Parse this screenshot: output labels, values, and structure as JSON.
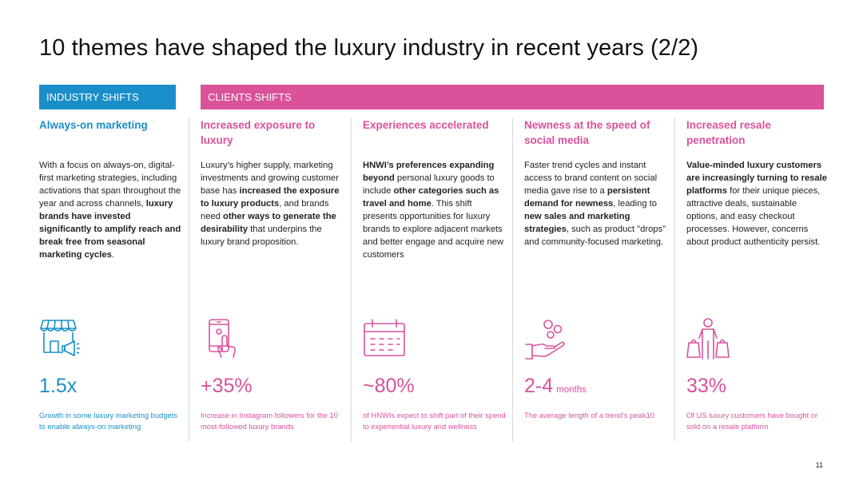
{
  "title": "10 themes have shaped the luxury industry in recent years (2/2)",
  "bands": {
    "industry": "INDUSTRY SHIFTS",
    "clients": "CLIENTS SHIFTS"
  },
  "columns": [
    {
      "title": "Always-on marketing",
      "body_html": "With a focus on always-on, digital-first marketing strategies, including activations that span throughout the year and across channels, <b>luxury brands have invested significantly to amplify reach and break free from seasonal marketing cycles</b>.",
      "icon": "storefront-megaphone-icon",
      "stat": "1.5x",
      "stat_unit": "",
      "caption": "Growth in some luxury marketing budgets to enable always-on marketing",
      "color": "#1a8ec9"
    },
    {
      "title": "Increased exposure to luxury",
      "body_html": "Luxury’s higher supply, marketing investments and growing customer base has <b>increased the exposure to luxury products</b>, and brands need <b>other ways to generate the desirability</b> that underpins the luxury brand proposition.",
      "icon": "smartphone-tap-icon",
      "stat": "+35%",
      "stat_unit": "",
      "caption": "Increase in Instagram followers for the 10 most-followed luxury brands",
      "color": "#d9529a"
    },
    {
      "title": "Experiences accelerated",
      "body_html": "<b>HNWI’s preferences expanding beyond</b> personal luxury goods to include <b>other categories such as travel and home</b>. This shift presents opportunities for luxury brands to explore adjacent markets and better engage and acquire new customers",
      "icon": "calendar-icon",
      "stat": "~80%",
      "stat_unit": "",
      "caption": "of HNWIs expect to shift part of their spend to experiential luxury and wellness",
      "color": "#d9529a"
    },
    {
      "title": "Newness at the speed of social media",
      "body_html": "Faster trend cycles and instant access to brand content on social media gave rise to a <b>persistent demand for newness</b>, leading to <b>new sales and marketing strategies</b>, such as product \"drops\" and community-focused marketing.",
      "icon": "hand-coins-icon",
      "stat": "2-4",
      "stat_unit": "months",
      "caption": "The average length of a trend’s peak10",
      "color": "#d9529a"
    },
    {
      "title": "Increased resale penetration",
      "body_html": "<b>Value-minded luxury customers are increasingly turning to resale platforms</b> for their unique pieces, attractive deals, sustainable options, and easy checkout processes. However, concerns about product authenticity persist.",
      "icon": "shopper-bags-icon",
      "stat": "33%",
      "stat_unit": "",
      "caption": "Of US luxury customers have bought or sold on a resale platform",
      "color": "#d9529a"
    }
  ],
  "page_number": "11"
}
